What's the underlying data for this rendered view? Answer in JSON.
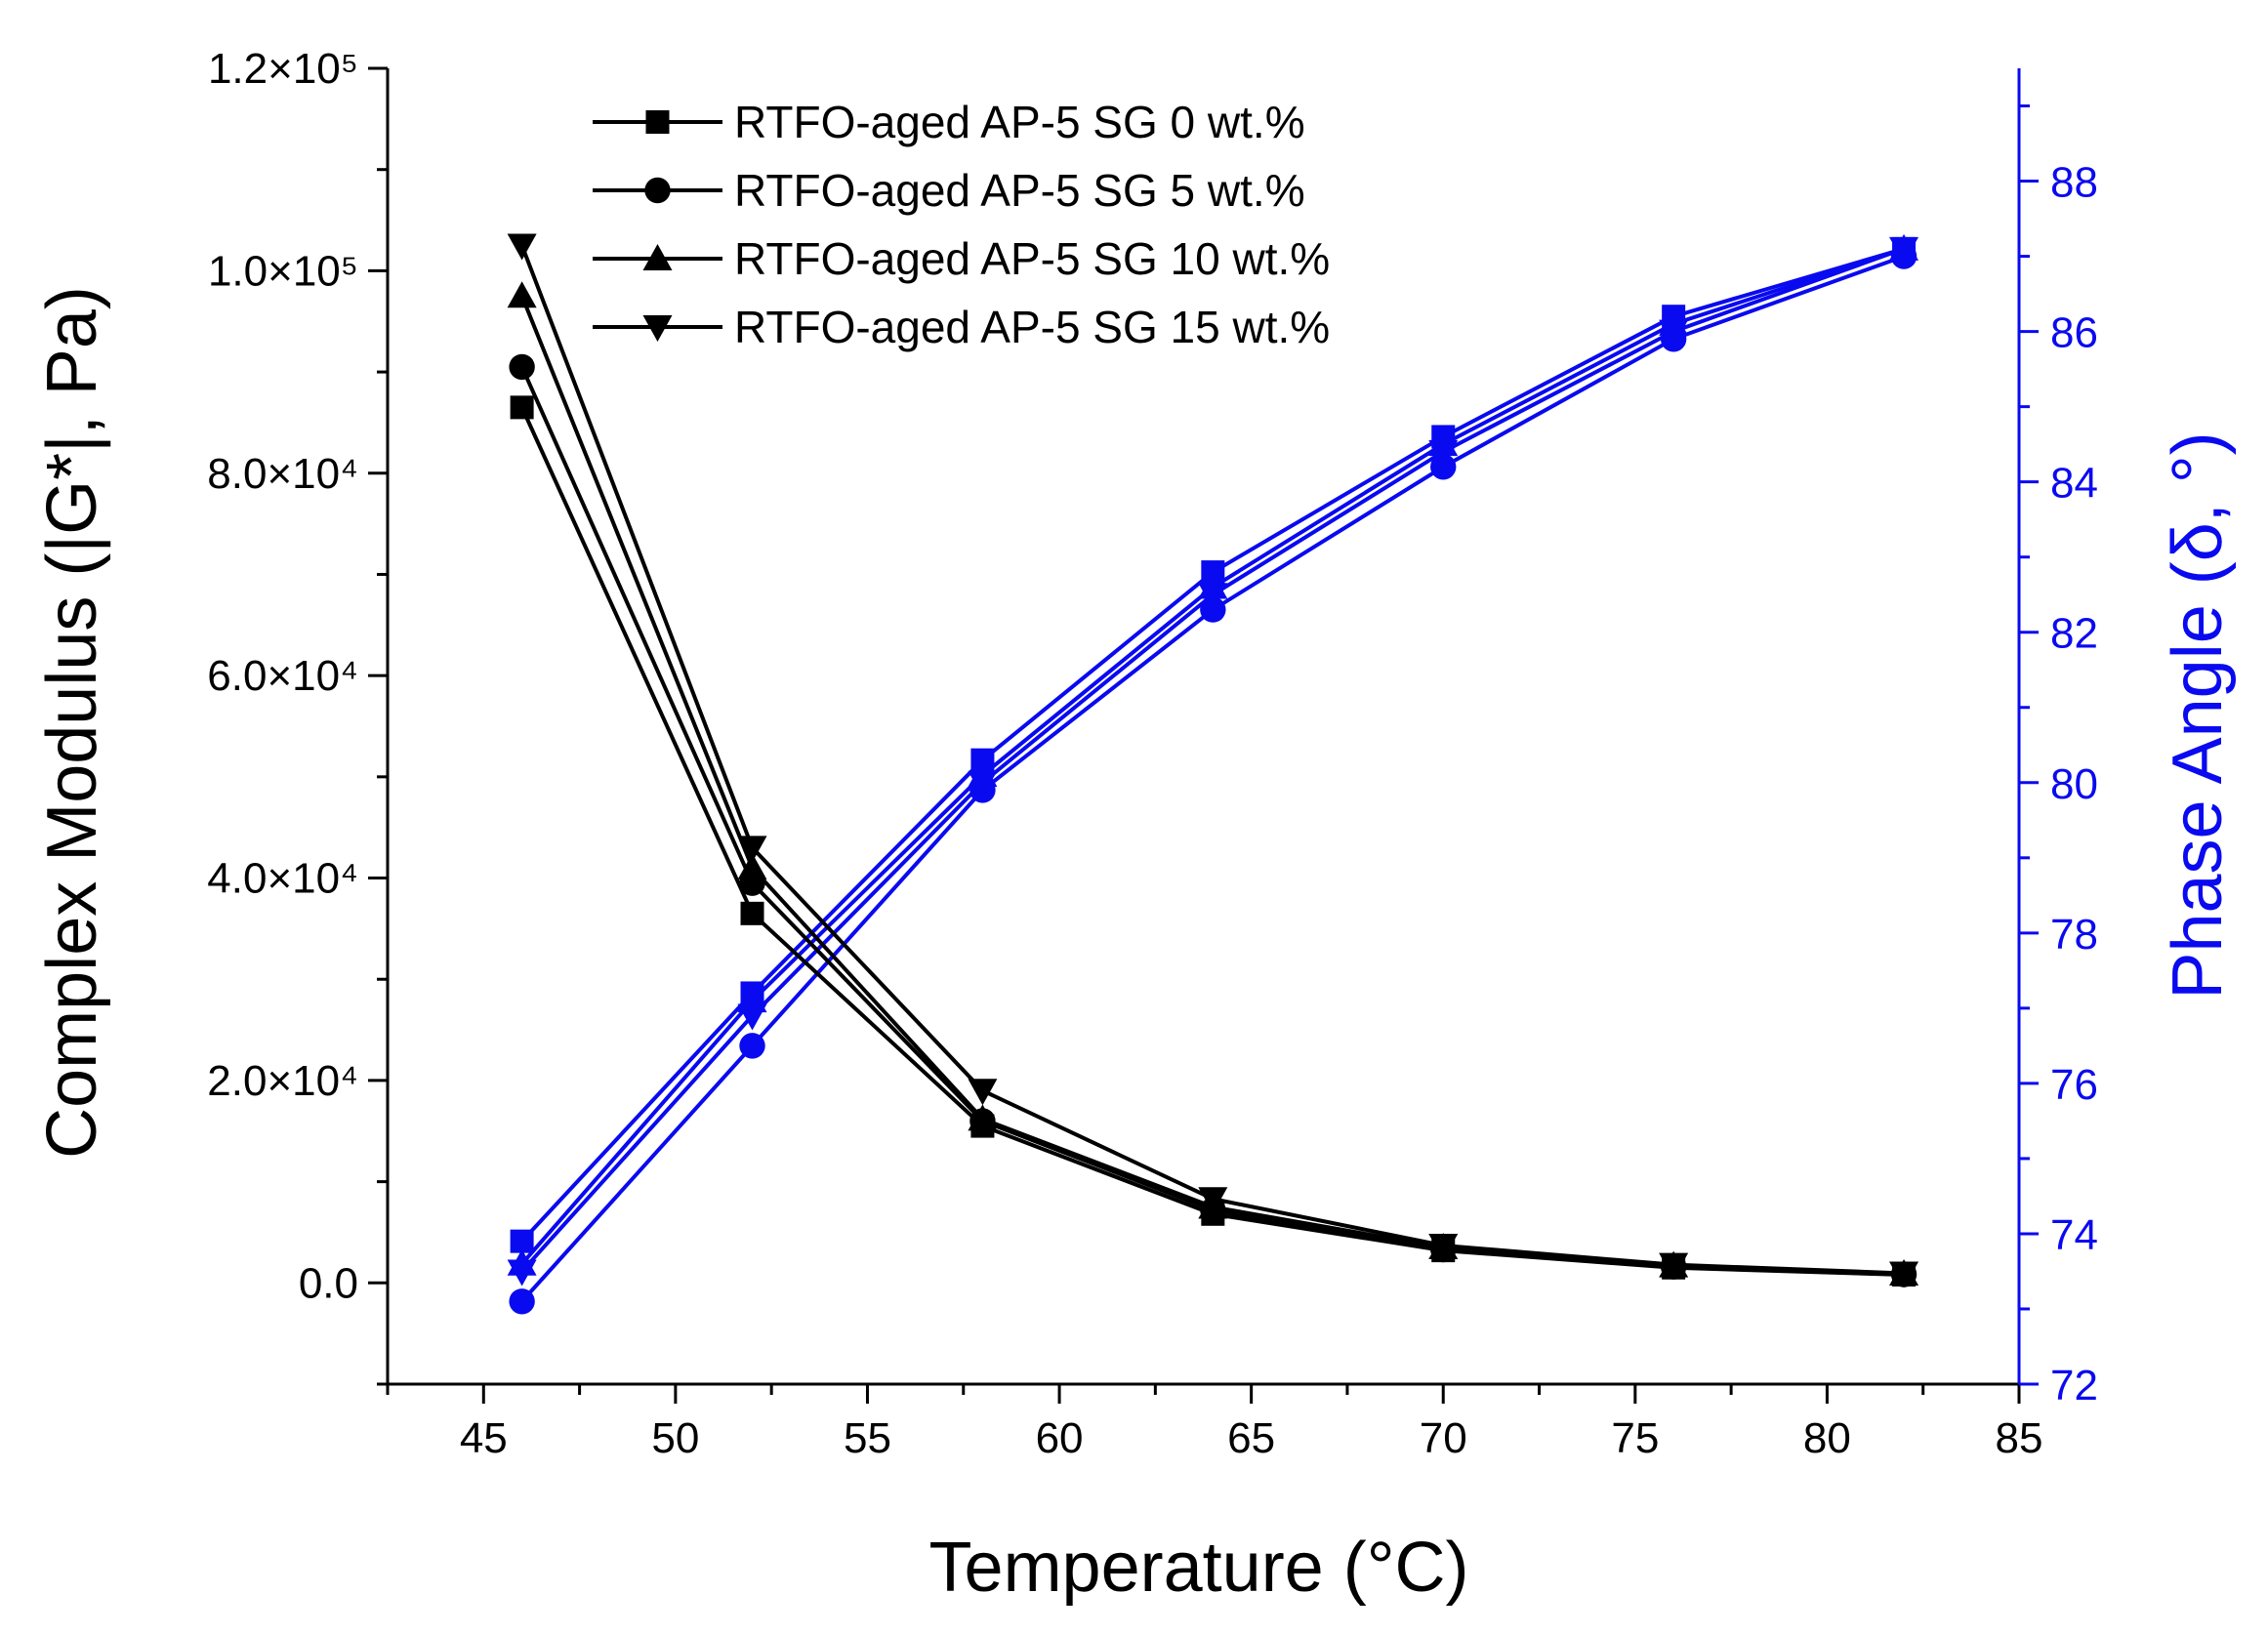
{
  "chart_data": {
    "type": "line",
    "xlabel": "Temperature (°C)",
    "ylabel_left": "Complex Modulus (|G*|, Pa)",
    "ylabel_right": "Phase Angle (δ, °)",
    "xlim": [
      42.5,
      85
    ],
    "ylim_left": [
      -10000,
      120000
    ],
    "ylim_right": [
      72,
      89.5
    ],
    "x_ticks": [
      "45",
      "50",
      "55",
      "60",
      "65",
      "70",
      "75",
      "80",
      "85"
    ],
    "y_left_ticks": [
      "0.0",
      "2.0×10⁴",
      "4.0×10⁴",
      "6.0×10⁴",
      "8.0×10⁴",
      "1.0×10⁵",
      "1.2×10⁵"
    ],
    "y_right_ticks": [
      "72",
      "74",
      "76",
      "78",
      "80",
      "82",
      "84",
      "86",
      "88"
    ],
    "x": [
      46,
      52,
      58,
      64,
      70,
      76,
      82
    ],
    "legend_position": "top-left",
    "modulus_color": "#000000",
    "phase_color": "#0a0af0",
    "series": [
      {
        "name": "RTFO-aged AP-5 SG 0 wt.%",
        "marker": "square",
        "modulus": [
          86500,
          36500,
          15500,
          6800,
          3200,
          1500,
          800
        ],
        "phase": [
          73.9,
          77.2,
          80.3,
          82.8,
          84.6,
          86.2,
          87.1
        ]
      },
      {
        "name": "RTFO-aged AP-5 SG 5 wt.%",
        "marker": "circle",
        "modulus": [
          90500,
          39500,
          16000,
          7200,
          3300,
          1600,
          850
        ],
        "phase": [
          73.1,
          76.5,
          79.9,
          82.3,
          84.2,
          85.9,
          87.0
        ]
      },
      {
        "name": "RTFO-aged AP-5 SG 10 wt.%",
        "marker": "triangle-up",
        "modulus": [
          97500,
          41000,
          16200,
          7500,
          3500,
          1700,
          900
        ],
        "phase": [
          73.6,
          77.1,
          80.1,
          82.6,
          84.5,
          86.1,
          87.1
        ]
      },
      {
        "name": "RTFO-aged AP-5 SG 15 wt.%",
        "marker": "triangle-down",
        "modulus": [
          102500,
          43000,
          19000,
          8300,
          3700,
          1800,
          950
        ],
        "phase": [
          73.5,
          76.9,
          80.0,
          82.5,
          84.4,
          86.0,
          87.1
        ]
      }
    ]
  }
}
